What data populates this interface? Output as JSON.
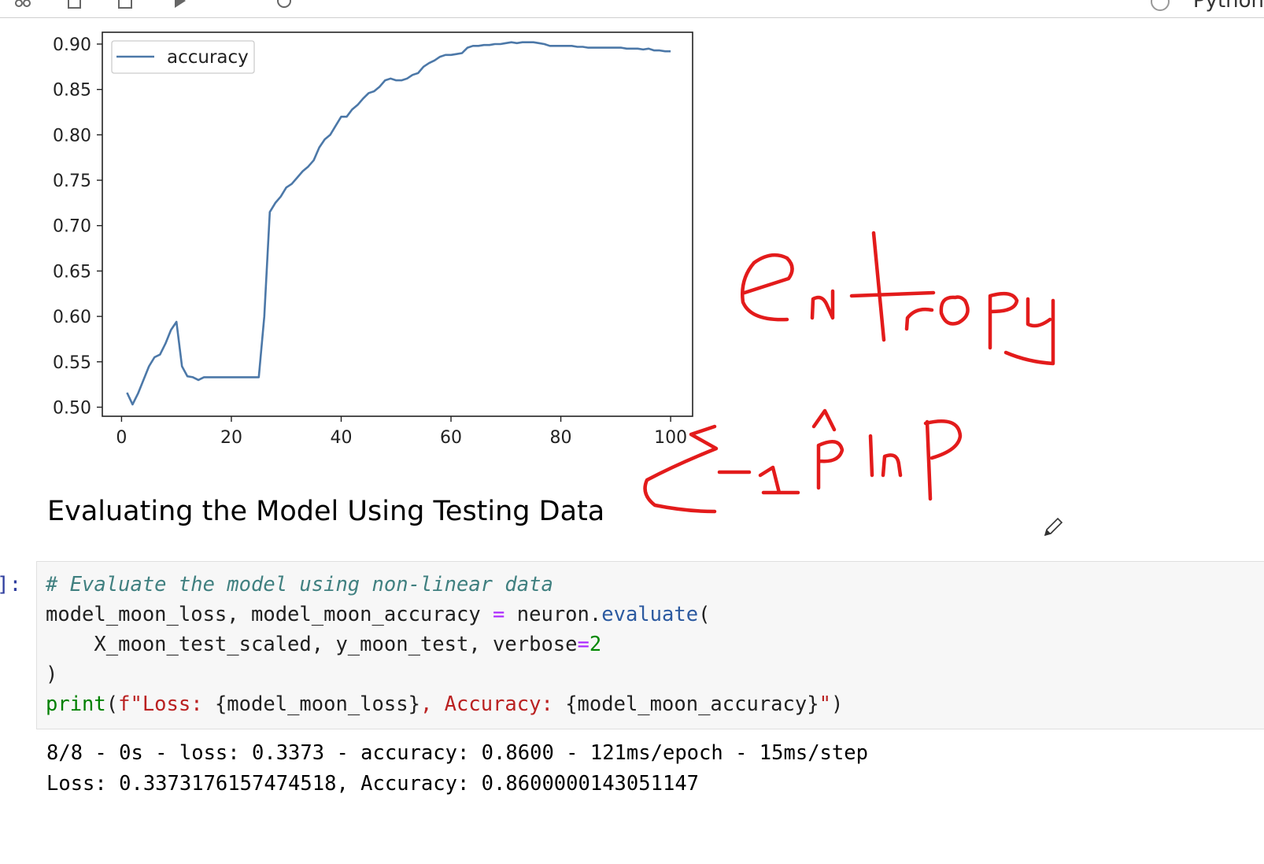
{
  "app": {
    "kernel_name": "Python",
    "toolbar_icons": [
      "cut-icon",
      "copy-icon",
      "paste-icon",
      "run-icon",
      "refresh-icon"
    ]
  },
  "cells": {
    "heading": "Evaluating the Model Using Testing Data",
    "code": {
      "prompt": "]:",
      "lines": [
        "# Evaluate the model using non-linear data",
        "model_moon_loss, model_moon_accuracy = neuron.evaluate(",
        "    X_moon_test_scaled, y_moon_test, verbose=2",
        ")",
        "print(f\"Loss: {model_moon_loss}, Accuracy: {model_moon_accuracy}\")"
      ]
    },
    "output_lines": [
      "8/8 - 0s - loss: 0.3373 - accuracy: 0.8600 - 121ms/epoch - 15ms/step",
      "Loss: 0.3373176157474518, Accuracy: 0.8600000143051147"
    ]
  },
  "annotations": {
    "handwritten": [
      "entropy",
      "Σ-1p̂ lnp̂"
    ],
    "ink_color": "#e31b1b",
    "cursor_icon": "pencil-icon"
  },
  "chart_data": {
    "type": "line",
    "title": "",
    "xlabel": "",
    "ylabel": "",
    "legend": {
      "placement": "top-left",
      "entries": [
        "accuracy"
      ]
    },
    "xlim": [
      -3.5,
      104
    ],
    "ylim": [
      0.49,
      0.913
    ],
    "xticks": [
      0,
      20,
      40,
      60,
      80,
      100
    ],
    "yticks": [
      0.5,
      0.55,
      0.6,
      0.65,
      0.7,
      0.75,
      0.8,
      0.85,
      0.9
    ],
    "ytick_labels": [
      "0.50",
      "0.55",
      "0.60",
      "0.65",
      "0.70",
      "0.75",
      "0.80",
      "0.85",
      "0.90"
    ],
    "grid": false,
    "series": [
      {
        "name": "accuracy",
        "color": "#4c78a8",
        "x": [
          1,
          2,
          3,
          4,
          5,
          6,
          7,
          8,
          9,
          10,
          11,
          12,
          13,
          14,
          15,
          16,
          17,
          18,
          19,
          20,
          21,
          22,
          23,
          24,
          25,
          26,
          27,
          28,
          29,
          30,
          31,
          32,
          33,
          34,
          35,
          36,
          37,
          38,
          39,
          40,
          41,
          42,
          43,
          44,
          45,
          46,
          47,
          48,
          49,
          50,
          51,
          52,
          53,
          54,
          55,
          56,
          57,
          58,
          59,
          60,
          61,
          62,
          63,
          64,
          65,
          66,
          67,
          68,
          69,
          70,
          71,
          72,
          73,
          74,
          75,
          76,
          77,
          78,
          79,
          80,
          81,
          82,
          83,
          84,
          85,
          86,
          87,
          88,
          89,
          90,
          91,
          92,
          93,
          94,
          95,
          96,
          97,
          98,
          99,
          100
        ],
        "values": [
          0.516,
          0.503,
          0.515,
          0.53,
          0.545,
          0.555,
          0.558,
          0.57,
          0.585,
          0.594,
          0.545,
          0.534,
          0.533,
          0.53,
          0.533,
          0.533,
          0.533,
          0.533,
          0.533,
          0.533,
          0.533,
          0.533,
          0.533,
          0.533,
          0.533,
          0.6,
          0.715,
          0.725,
          0.732,
          0.742,
          0.746,
          0.753,
          0.76,
          0.765,
          0.772,
          0.786,
          0.795,
          0.8,
          0.81,
          0.82,
          0.82,
          0.828,
          0.833,
          0.84,
          0.846,
          0.848,
          0.853,
          0.86,
          0.862,
          0.86,
          0.86,
          0.862,
          0.866,
          0.868,
          0.875,
          0.879,
          0.882,
          0.886,
          0.888,
          0.888,
          0.889,
          0.89,
          0.896,
          0.898,
          0.898,
          0.899,
          0.899,
          0.9,
          0.9,
          0.901,
          0.902,
          0.901,
          0.902,
          0.902,
          0.902,
          0.901,
          0.9,
          0.898,
          0.898,
          0.898,
          0.898,
          0.898,
          0.897,
          0.897,
          0.896,
          0.896,
          0.896,
          0.896,
          0.896,
          0.896,
          0.896,
          0.895,
          0.895,
          0.895,
          0.894,
          0.895,
          0.893,
          0.893,
          0.892,
          0.892
        ]
      }
    ]
  }
}
